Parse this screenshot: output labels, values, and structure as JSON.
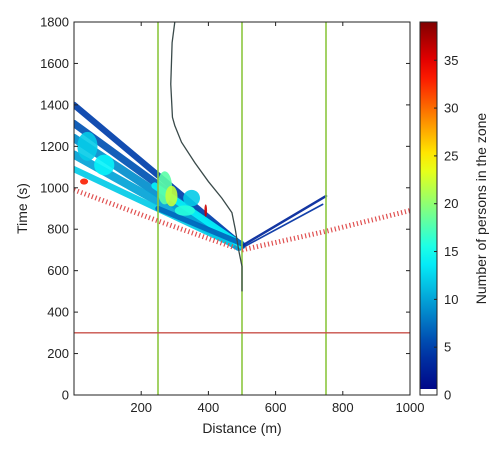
{
  "chart_data": {
    "type": "heatmap",
    "xlabel": "Distance (m)",
    "ylabel": "Time (s)",
    "colorbar_label": "Number of persons in the zone",
    "xlim": [
      0,
      1000
    ],
    "ylim": [
      0,
      1800
    ],
    "clim": [
      0,
      39
    ],
    "x_ticks": [
      "200",
      "400",
      "600",
      "800",
      "1000"
    ],
    "y_ticks": [
      "0",
      "200",
      "400",
      "600",
      "800",
      "1000",
      "1200",
      "1400",
      "1600",
      "1800"
    ],
    "colorbar_ticks": [
      "0",
      "5",
      "10",
      "15",
      "20",
      "25",
      "30",
      "35"
    ],
    "vertical_lines": {
      "x": [
        250,
        500,
        750
      ],
      "color": "#8cc63f"
    },
    "horizontal_line": {
      "y": 300,
      "color": "#c8504a"
    },
    "dark_curve": {
      "color": "#3a4a4a",
      "x": [
        300,
        292,
        288,
        293,
        300,
        320,
        360,
        400,
        440,
        470,
        480,
        490,
        500,
        500
      ],
      "y": [
        1800,
        1700,
        1500,
        1340,
        1300,
        1220,
        1120,
        1030,
        950,
        880,
        800,
        700,
        620,
        500
      ]
    },
    "dotted_front_left": {
      "color": "#e05050",
      "x": [
        0,
        250,
        480
      ],
      "y": [
        990,
        840,
        710
      ]
    },
    "dotted_front_right": {
      "color": "#e05050",
      "x": [
        500,
        750,
        1000
      ],
      "y": [
        700,
        790,
        890
      ]
    },
    "density_bands": [
      {
        "x1": 0,
        "y1": 1400,
        "x2": 500,
        "y2": 720,
        "width": 30,
        "value": 5
      },
      {
        "x1": 0,
        "y1": 1310,
        "x2": 500,
        "y2": 720,
        "width": 35,
        "value": 6
      },
      {
        "x1": 0,
        "y1": 1240,
        "x2": 490,
        "y2": 715,
        "width": 40,
        "value": 9
      },
      {
        "x1": 0,
        "y1": 1160,
        "x2": 480,
        "y2": 725,
        "width": 40,
        "value": 10
      },
      {
        "x1": 0,
        "y1": 1090,
        "x2": 470,
        "y2": 730,
        "width": 30,
        "value": 12
      },
      {
        "x1": 240,
        "y1": 1010,
        "x2": 500,
        "y2": 720,
        "width": 32,
        "value": 14
      },
      {
        "x1": 250,
        "y1": 900,
        "x2": 500,
        "y2": 730,
        "width": 26,
        "value": 7
      },
      {
        "x1": 500,
        "y1": 720,
        "x2": 750,
        "y2": 960,
        "width": 12,
        "value": 3
      },
      {
        "x1": 500,
        "y1": 710,
        "x2": 740,
        "y2": 920,
        "width": 8,
        "value": 4
      }
    ],
    "density_blobs": [
      {
        "x": 40,
        "y": 1200,
        "rx": 30,
        "ry": 70,
        "value": 12
      },
      {
        "x": 90,
        "y": 1110,
        "rx": 30,
        "ry": 50,
        "value": 14
      },
      {
        "x": 270,
        "y": 1000,
        "rx": 22,
        "ry": 80,
        "value": 18
      },
      {
        "x": 290,
        "y": 960,
        "rx": 18,
        "ry": 50,
        "value": 22
      },
      {
        "x": 350,
        "y": 950,
        "rx": 25,
        "ry": 40,
        "value": 12
      },
      {
        "x": 330,
        "y": 890,
        "rx": 30,
        "ry": 25,
        "value": 16
      },
      {
        "x": 392,
        "y": 890,
        "rx": 4,
        "ry": 30,
        "value": 36
      },
      {
        "x": 30,
        "y": 1030,
        "rx": 12,
        "ry": 15,
        "value": 33
      }
    ]
  }
}
